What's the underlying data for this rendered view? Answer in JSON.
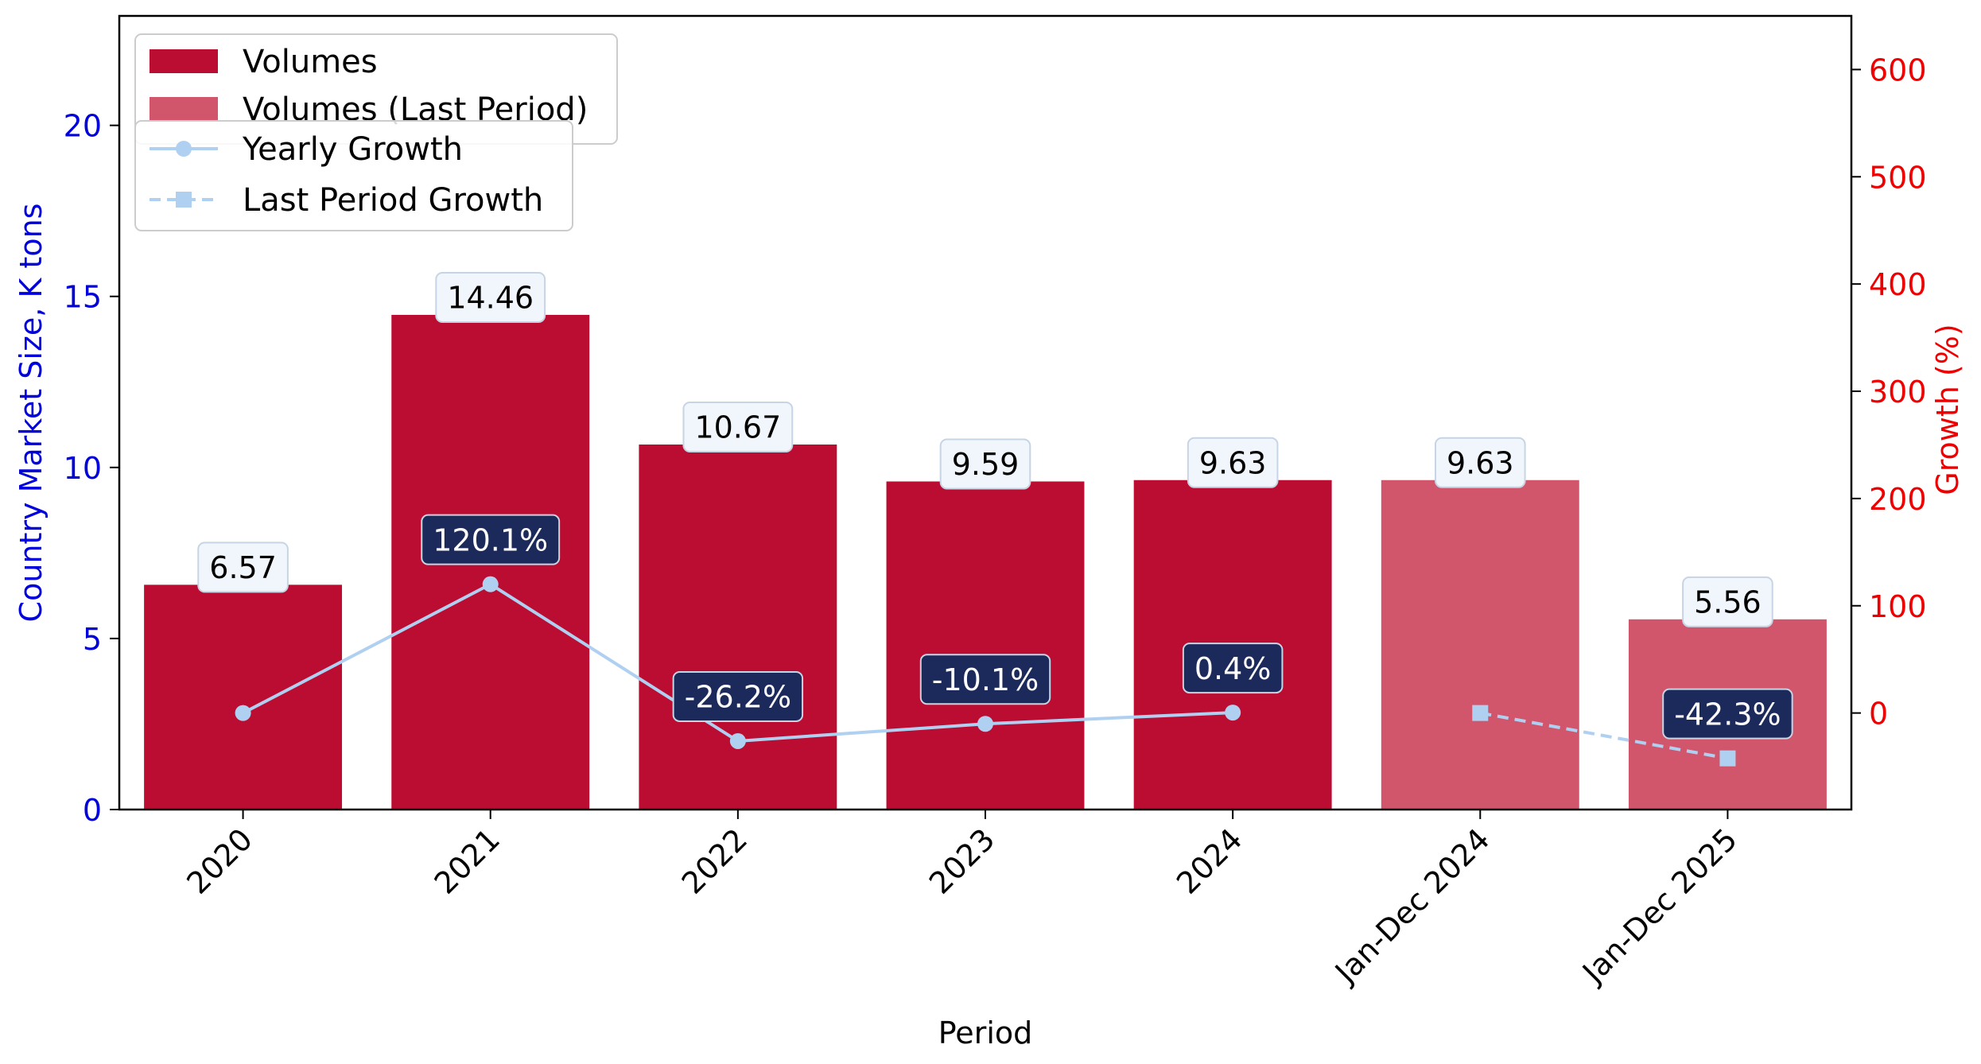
{
  "chart_data": {
    "type": "bar",
    "xlabel": "Period",
    "ylabel": "Country Market Size, K tons",
    "y2label": "Growth (%)",
    "ylim": [
      0,
      23.2
    ],
    "y2lim": [
      -90,
      650
    ],
    "yticks": [
      0,
      5,
      10,
      15,
      20
    ],
    "y2ticks": [
      0,
      100,
      200,
      300,
      400,
      500,
      600
    ],
    "categories": [
      "2020",
      "2021",
      "2022",
      "2023",
      "2024",
      "Jan-Dec 2024",
      "Jan-Dec 2025"
    ],
    "bars": [
      {
        "category": "2020",
        "value": 6.57,
        "label": "6.57",
        "series": "Volumes"
      },
      {
        "category": "2021",
        "value": 14.46,
        "label": "14.46",
        "series": "Volumes"
      },
      {
        "category": "2022",
        "value": 10.67,
        "label": "10.67",
        "series": "Volumes"
      },
      {
        "category": "2023",
        "value": 9.59,
        "label": "9.59",
        "series": "Volumes"
      },
      {
        "category": "2024",
        "value": 9.63,
        "label": "9.63",
        "series": "Volumes"
      },
      {
        "category": "Jan-Dec 2024",
        "value": 9.63,
        "label": "9.63",
        "series": "Volumes (Last Period)"
      },
      {
        "category": "Jan-Dec 2025",
        "value": 5.56,
        "label": "5.56",
        "series": "Volumes (Last Period)"
      }
    ],
    "lines": [
      {
        "name": "Yearly Growth",
        "style": "solid",
        "marker": "circle",
        "points": [
          {
            "category": "2020",
            "value": 0,
            "label": ""
          },
          {
            "category": "2021",
            "value": 120.1,
            "label": "120.1%"
          },
          {
            "category": "2022",
            "value": -26.2,
            "label": "-26.2%"
          },
          {
            "category": "2023",
            "value": -10.1,
            "label": "-10.1%"
          },
          {
            "category": "2024",
            "value": 0.4,
            "label": "0.4%"
          }
        ]
      },
      {
        "name": "Last Period Growth",
        "style": "dashed",
        "marker": "square",
        "points": [
          {
            "category": "Jan-Dec 2024",
            "value": 0,
            "label": ""
          },
          {
            "category": "Jan-Dec 2025",
            "value": -42.3,
            "label": "-42.3%"
          }
        ]
      }
    ],
    "legend_bars": {
      "placement": "top-left",
      "items": [
        {
          "name": "Volumes",
          "color": "#bb0c32"
        },
        {
          "name": "Volumes (Last Period)",
          "color": "#d1566c"
        }
      ]
    },
    "legend_lines": {
      "placement": "top-left",
      "items": [
        {
          "name": "Yearly Growth",
          "style": "solid",
          "marker": "circle"
        },
        {
          "name": "Last Period Growth",
          "style": "dashed",
          "marker": "square"
        }
      ]
    },
    "colors": {
      "bar": "#bb0c32",
      "bar_last": "#d1566c",
      "line": "#b0d0f2",
      "left_axis": "#0000dd",
      "right_axis": "#ee0000",
      "value_label_bg": "#f0f6fc",
      "growth_label_bg": "#1c2a5b",
      "growth_label_text": "#ffffff"
    }
  }
}
